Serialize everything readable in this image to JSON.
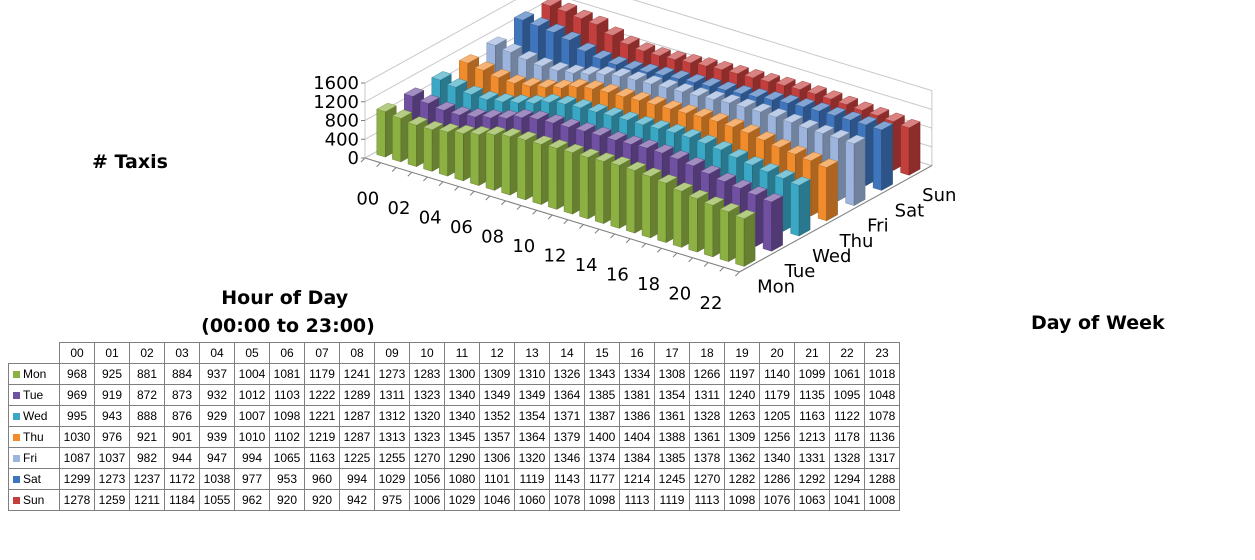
{
  "chart_data": {
    "type": "bar",
    "subtype": "3d-column",
    "title": "",
    "zlabel": "# Taxis",
    "xlabel": "Hour of Day (00:00 to 23:00)",
    "xlabel_lines": [
      "Hour of Day",
      "(00:00 to 23:00)"
    ],
    "ylabel": "Day of Week",
    "zlim": [
      0,
      1600
    ],
    "zticks": [
      "0",
      "400",
      "800",
      "1200",
      "1600"
    ],
    "x_tick_labels": [
      "00",
      "02",
      "04",
      "06",
      "08",
      "10",
      "12",
      "14",
      "16",
      "18",
      "20",
      "22"
    ],
    "categories": [
      "00",
      "01",
      "02",
      "03",
      "04",
      "05",
      "06",
      "07",
      "08",
      "09",
      "10",
      "11",
      "12",
      "13",
      "14",
      "15",
      "16",
      "17",
      "18",
      "19",
      "20",
      "21",
      "22",
      "23"
    ],
    "series": [
      {
        "name": "Mon",
        "color": "#8db043",
        "values": [
          968,
          925,
          881,
          884,
          937,
          1004,
          1081,
          1179,
          1241,
          1273,
          1283,
          1300,
          1309,
          1310,
          1326,
          1343,
          1334,
          1308,
          1266,
          1197,
          1140,
          1099,
          1061,
          1018
        ]
      },
      {
        "name": "Tue",
        "color": "#7050a0",
        "values": [
          969,
          919,
          872,
          873,
          932,
          1012,
          1103,
          1222,
          1289,
          1311,
          1323,
          1340,
          1349,
          1349,
          1364,
          1385,
          1381,
          1354,
          1311,
          1240,
          1179,
          1135,
          1095,
          1048
        ]
      },
      {
        "name": "Wed",
        "color": "#3aa7c4",
        "values": [
          995,
          943,
          888,
          876,
          929,
          1007,
          1098,
          1221,
          1287,
          1312,
          1320,
          1340,
          1352,
          1354,
          1371,
          1387,
          1386,
          1361,
          1328,
          1263,
          1205,
          1163,
          1122,
          1078
        ]
      },
      {
        "name": "Thu",
        "color": "#f08c2c",
        "values": [
          1030,
          976,
          921,
          901,
          939,
          1010,
          1102,
          1219,
          1287,
          1313,
          1323,
          1345,
          1357,
          1364,
          1379,
          1400,
          1404,
          1388,
          1361,
          1309,
          1256,
          1213,
          1178,
          1136
        ]
      },
      {
        "name": "Fri",
        "color": "#9db4dc",
        "values": [
          1087,
          1037,
          982,
          944,
          947,
          994,
          1065,
          1163,
          1225,
          1255,
          1270,
          1290,
          1306,
          1320,
          1346,
          1374,
          1384,
          1385,
          1378,
          1362,
          1340,
          1331,
          1328,
          1317
        ]
      },
      {
        "name": "Sat",
        "color": "#3f75bd",
        "values": [
          1299,
          1273,
          1237,
          1172,
          1038,
          977,
          953,
          960,
          994,
          1029,
          1056,
          1080,
          1101,
          1119,
          1143,
          1177,
          1214,
          1245,
          1270,
          1282,
          1286,
          1292,
          1294,
          1288
        ]
      },
      {
        "name": "Sun",
        "color": "#c33f3d",
        "values": [
          1278,
          1259,
          1211,
          1184,
          1055,
          962,
          920,
          920,
          942,
          975,
          1006,
          1029,
          1046,
          1060,
          1078,
          1098,
          1113,
          1119,
          1113,
          1098,
          1076,
          1063,
          1041,
          1008
        ]
      }
    ]
  }
}
